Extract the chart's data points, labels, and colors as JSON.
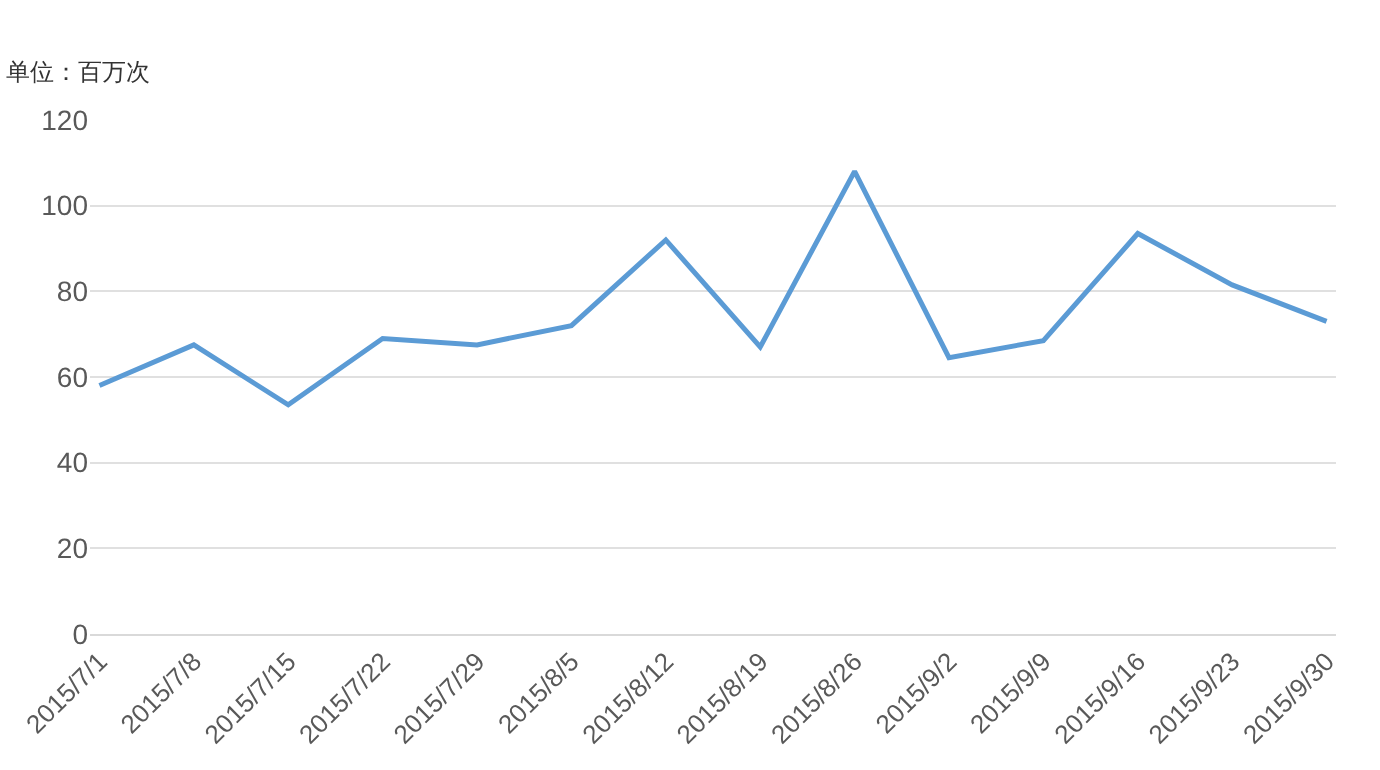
{
  "chart_data": {
    "type": "line",
    "ylabel": "单位：百万次",
    "categories": [
      "2015/7/1",
      "2015/7/8",
      "2015/7/15",
      "2015/7/22",
      "2015/7/29",
      "2015/8/5",
      "2015/8/12",
      "2015/8/19",
      "2015/8/26",
      "2015/9/2",
      "2015/9/9",
      "2015/9/16",
      "2015/9/23",
      "2015/9/30"
    ],
    "series": [
      {
        "color": "#5b9bd5",
        "values": [
          58,
          67.5,
          53.5,
          69,
          67.5,
          72,
          92,
          67,
          108,
          64.5,
          68.5,
          93.5,
          81.5,
          73
        ]
      }
    ],
    "ylim": [
      0,
      120
    ],
    "yticks": [
      0,
      20,
      40,
      60,
      80,
      100,
      120
    ],
    "grid": "y",
    "marker": "none",
    "line_style": "solid"
  }
}
